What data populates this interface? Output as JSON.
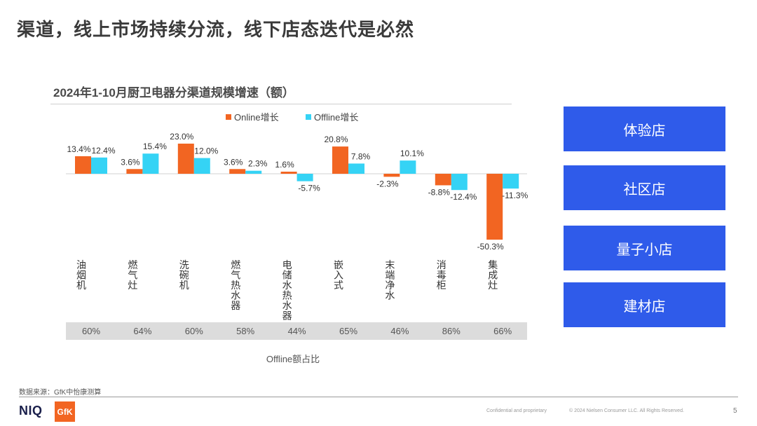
{
  "page": {
    "title": "渠道，线上市场持续分流，线下店态迭代是必然",
    "source": "数据来源：GfK中怡康测算",
    "confidential": "Confidential and proprietary",
    "copyright": "© 2024 Nielsen Consumer LLC. All Rights Reserved.",
    "page_number": "5"
  },
  "logos": {
    "niq": "NIQ",
    "gfk": "GfK"
  },
  "store_types": [
    "体验店",
    "社区店",
    "量子小店",
    "建材店"
  ],
  "colors": {
    "online": "#f26522",
    "offline": "#35d3f5",
    "store_box": "#2f5bea",
    "share_bar": "#dcdcdc"
  },
  "chart_data": {
    "type": "bar",
    "title": "2024年1-10月厨卫电器分渠道规模增速（额）",
    "categories": [
      "油烟机",
      "燃气灶",
      "洗碗机",
      "燃气热水器",
      "电储水热水器",
      "嵌入式",
      "末端净水",
      "消毒柜",
      "集成灶"
    ],
    "series": [
      {
        "name": "Online增长",
        "values": [
          13.4,
          3.6,
          23.0,
          3.6,
          1.6,
          20.8,
          -2.3,
          -8.8,
          -50.3
        ]
      },
      {
        "name": "Offline增长",
        "values": [
          12.4,
          15.4,
          12.0,
          2.3,
          -5.7,
          7.8,
          10.1,
          -12.4,
          -11.3
        ]
      }
    ],
    "value_labels": {
      "online": [
        "13.4%",
        "3.6%",
        "23.0%",
        "3.6%",
        "1.6%",
        "20.8%",
        "-2.3%",
        "-8.8%",
        "-50.3%"
      ],
      "offline": [
        "12.4%",
        "15.4%",
        "12.0%",
        "2.3%",
        "-5.7%",
        "7.8%",
        "10.1%",
        "-12.4%",
        "-11.3%"
      ]
    },
    "legend_position": "top",
    "offline_share": {
      "label": "Offline额占比",
      "values": [
        "60%",
        "64%",
        "60%",
        "58%",
        "44%",
        "65%",
        "46%",
        "86%",
        "66%"
      ]
    }
  }
}
